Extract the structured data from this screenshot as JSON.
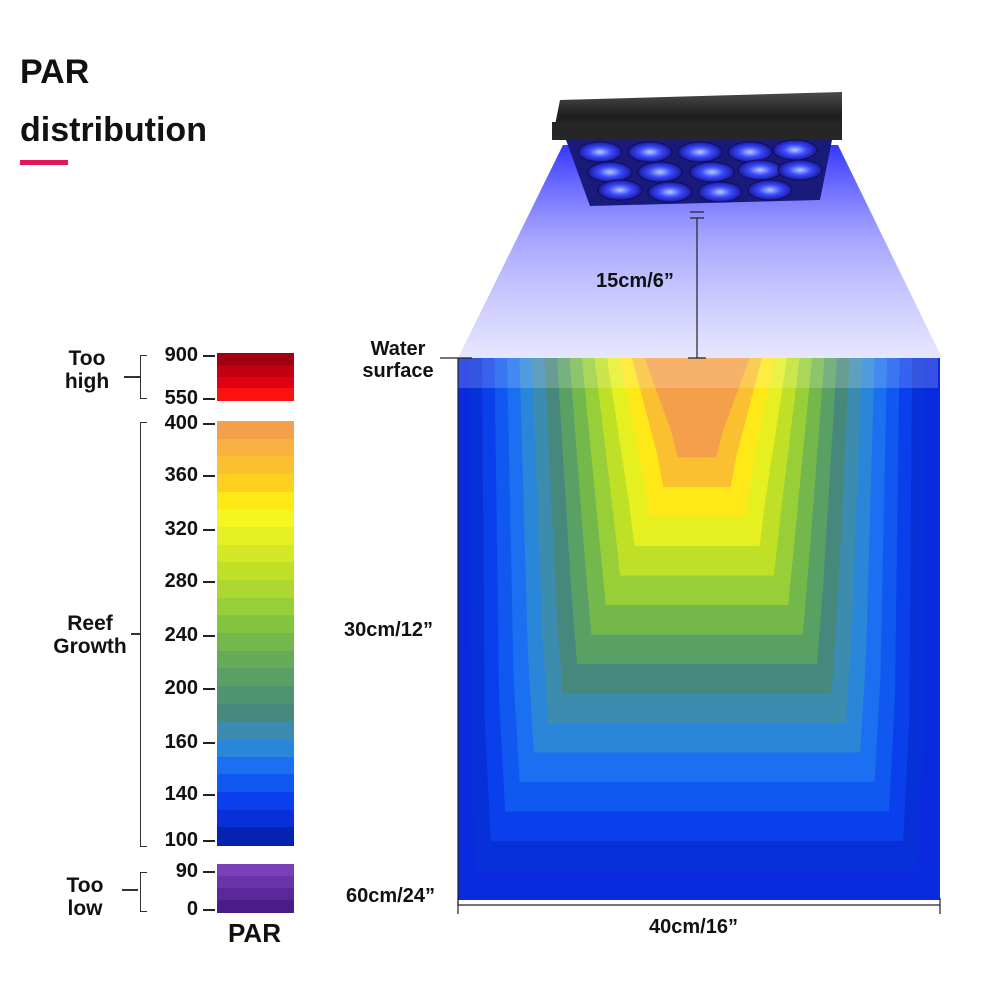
{
  "title": {
    "line1": "PAR",
    "line2": "distribution",
    "accent": "#e3165b"
  },
  "chart_data": {
    "type": "heatmap",
    "title": "PAR distribution",
    "colorbar": {
      "label": "PAR",
      "ticks": [
        "900",
        "550",
        "400",
        "360",
        "320",
        "280",
        "240",
        "200",
        "160",
        "140",
        "100",
        "90",
        "0"
      ],
      "bands": [
        {
          "label": "Too high",
          "range": [
            "550",
            "900"
          ],
          "colors": [
            "#a00010",
            "#c00010",
            "#e00010",
            "#ff1010"
          ]
        },
        {
          "label": "Reef Growth",
          "range": [
            "100",
            "400"
          ],
          "colors": [
            "#f4a04a",
            "#f8b040",
            "#fbc030",
            "#fdd020",
            "#fee818",
            "#f5f520",
            "#e6f020",
            "#d4e828",
            "#c0e028",
            "#acd830",
            "#98cf38",
            "#84c440",
            "#74b84c",
            "#66ac58",
            "#5aa064",
            "#4f9470",
            "#46887c",
            "#3c8cb0",
            "#2a86d8",
            "#1a70f0",
            "#1058f0",
            "#0a40ec",
            "#0830d8",
            "#0622b0"
          ]
        },
        {
          "label": "Too low",
          "range": [
            "0",
            "90"
          ],
          "colors": [
            "#7a40b8",
            "#6a34a8",
            "#5a2898",
            "#4a1c88"
          ]
        }
      ]
    },
    "dimensions": {
      "light_height": "15cm/6”",
      "water_surface": "Water surface",
      "mid_depth": "30cm/12”",
      "bottom_depth": "60cm/24”",
      "width": "40cm/16”"
    },
    "depth_levels": [
      "60cm/24”",
      "30cm/12”",
      "Water surface"
    ],
    "par_contour_colors": [
      "#f4a04a",
      "#fbc030",
      "#fee818",
      "#e6f020",
      "#c0e028",
      "#98cf38",
      "#74b84c",
      "#5aa064",
      "#46887c",
      "#3c8cb0",
      "#2a86d8",
      "#1a70f0",
      "#1058f0",
      "#0a40ec",
      "#0830d8"
    ]
  },
  "labels": {
    "too_high_1": "Too",
    "too_high_2": "high",
    "reef_1": "Reef",
    "reef_2": "Growth",
    "too_low_1": "Too",
    "too_low_2": "low",
    "water_1": "Water",
    "water_2": "surface"
  },
  "icons": {
    "lamp": "led-aquarium-light-icon"
  }
}
